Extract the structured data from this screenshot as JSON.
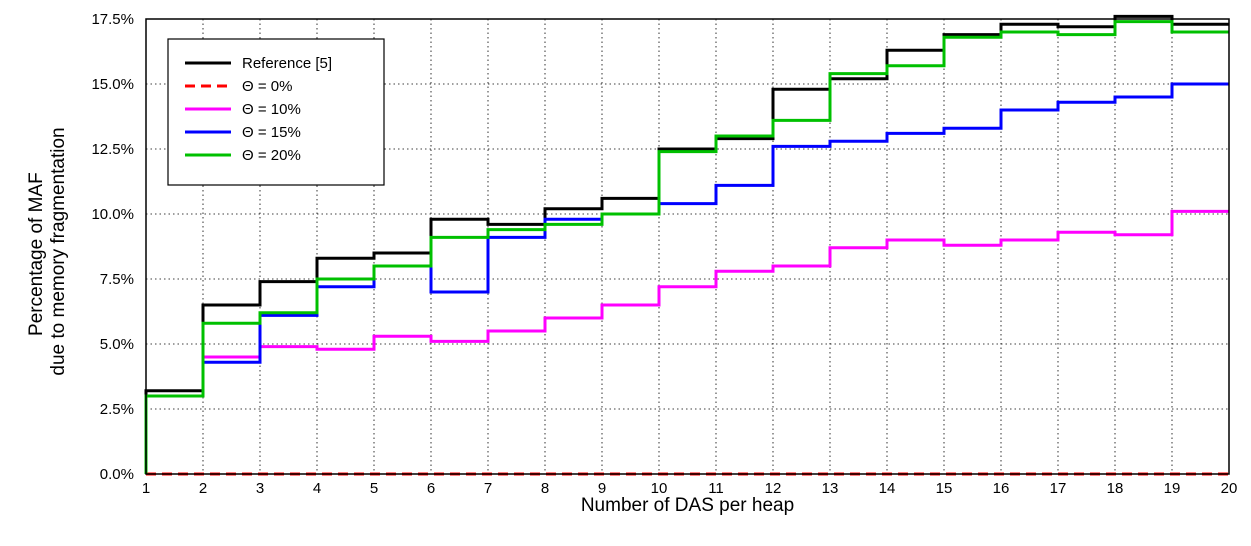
{
  "chart_data": {
    "type": "line",
    "step": true,
    "xlabel": "Number of DAS per heap",
    "ylabel_lines": [
      "Percentage of MAF",
      "due to memory fragmentation"
    ],
    "x": [
      1,
      2,
      3,
      4,
      5,
      6,
      7,
      8,
      9,
      10,
      11,
      12,
      13,
      14,
      15,
      16,
      17,
      18,
      19,
      20
    ],
    "x_ticks": [
      "1",
      "2",
      "3",
      "4",
      "5",
      "6",
      "7",
      "8",
      "9",
      "10",
      "11",
      "12",
      "13",
      "14",
      "15",
      "16",
      "17",
      "18",
      "19",
      "20"
    ],
    "xlim": [
      1,
      20
    ],
    "ylim": [
      0,
      17.5
    ],
    "y_ticks": [
      {
        "value": 0,
        "label": "0.0%"
      },
      {
        "value": 2.5,
        "label": "2.5%"
      },
      {
        "value": 5,
        "label": "5.0%"
      },
      {
        "value": 7.5,
        "label": "7.5%"
      },
      {
        "value": 10,
        "label": "10.0%"
      },
      {
        "value": 12.5,
        "label": "12.5%"
      },
      {
        "value": 15,
        "label": "15.0%"
      },
      {
        "value": 17.5,
        "label": "17.5%"
      }
    ],
    "grid": true,
    "legend_position": "top-left",
    "series": [
      {
        "name": "Reference [5]",
        "color": "#000000",
        "dash": false,
        "values": [
          3.2,
          6.5,
          7.4,
          8.3,
          8.5,
          9.8,
          9.6,
          10.2,
          10.6,
          12.5,
          12.9,
          14.8,
          15.2,
          16.3,
          16.9,
          17.3,
          17.2,
          17.6,
          17.3,
          17.3
        ]
      },
      {
        "name": "Θ = 0%",
        "color": "#ff0000",
        "dash": true,
        "values": [
          0,
          0,
          0,
          0,
          0,
          0,
          0,
          0,
          0,
          0,
          0,
          0,
          0,
          0,
          0,
          0,
          0,
          0,
          0,
          0
        ]
      },
      {
        "name": "Θ = 10%",
        "color": "#ff00ff",
        "dash": false,
        "values": [
          3.0,
          4.5,
          4.9,
          4.8,
          5.3,
          5.1,
          5.5,
          6.0,
          6.5,
          7.2,
          7.8,
          8.0,
          8.7,
          9.0,
          8.8,
          9.0,
          9.3,
          9.2,
          10.1,
          10.1
        ]
      },
      {
        "name": "Θ = 15%",
        "color": "#0000ff",
        "dash": false,
        "values": [
          3.0,
          4.3,
          6.1,
          7.2,
          8.0,
          7.0,
          9.1,
          9.8,
          10.0,
          10.4,
          11.1,
          12.6,
          12.8,
          13.1,
          13.3,
          14.0,
          14.3,
          14.5,
          15.0,
          15.0
        ]
      },
      {
        "name": "Θ = 20%",
        "color": "#00c000",
        "dash": false,
        "values": [
          3.0,
          5.8,
          6.2,
          7.5,
          8.0,
          9.1,
          9.4,
          9.6,
          10.0,
          12.4,
          13.0,
          13.6,
          15.4,
          15.7,
          16.8,
          17.0,
          16.9,
          17.4,
          17.0,
          17.0
        ]
      }
    ]
  }
}
